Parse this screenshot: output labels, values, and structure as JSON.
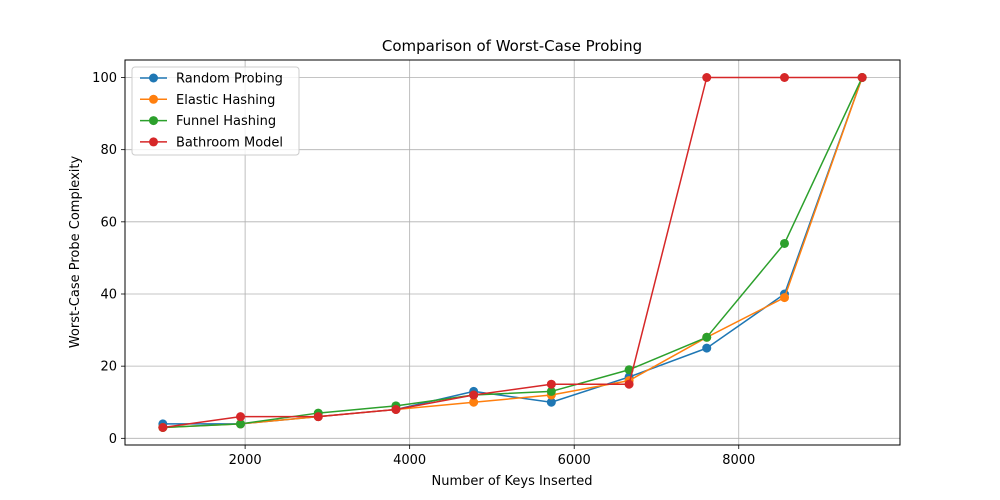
{
  "chart_data": {
    "type": "line",
    "title": "Comparison of Worst-Case Probing",
    "xlabel": "Number of Keys Inserted",
    "ylabel": "Worst-Case Probe Complexity",
    "x": [
      1000,
      1944,
      2889,
      3833,
      4778,
      5722,
      6667,
      7611,
      8556,
      9500
    ],
    "xlim": [
      540,
      9960
    ],
    "ylim": [
      -1.85,
      104.85
    ],
    "xticks": [
      2000,
      4000,
      6000,
      8000
    ],
    "yticks": [
      0,
      20,
      40,
      60,
      80,
      100
    ],
    "grid": true,
    "legend": "upper-left",
    "series": [
      {
        "name": "Random Probing",
        "color": "#1f77b4",
        "values": [
          4,
          4,
          6,
          8,
          13,
          10,
          17,
          25,
          40,
          100
        ]
      },
      {
        "name": "Elastic Hashing",
        "color": "#ff7f0e",
        "values": [
          3,
          4,
          6,
          8,
          10,
          12,
          16,
          28,
          39,
          100
        ]
      },
      {
        "name": "Funnel Hashing",
        "color": "#2ca02c",
        "values": [
          3,
          4,
          7,
          9,
          12,
          13,
          19,
          28,
          54,
          100
        ]
      },
      {
        "name": "Bathroom Model",
        "color": "#d62728",
        "values": [
          3,
          6,
          6,
          8,
          12,
          15,
          15,
          100,
          100,
          100
        ]
      }
    ]
  }
}
